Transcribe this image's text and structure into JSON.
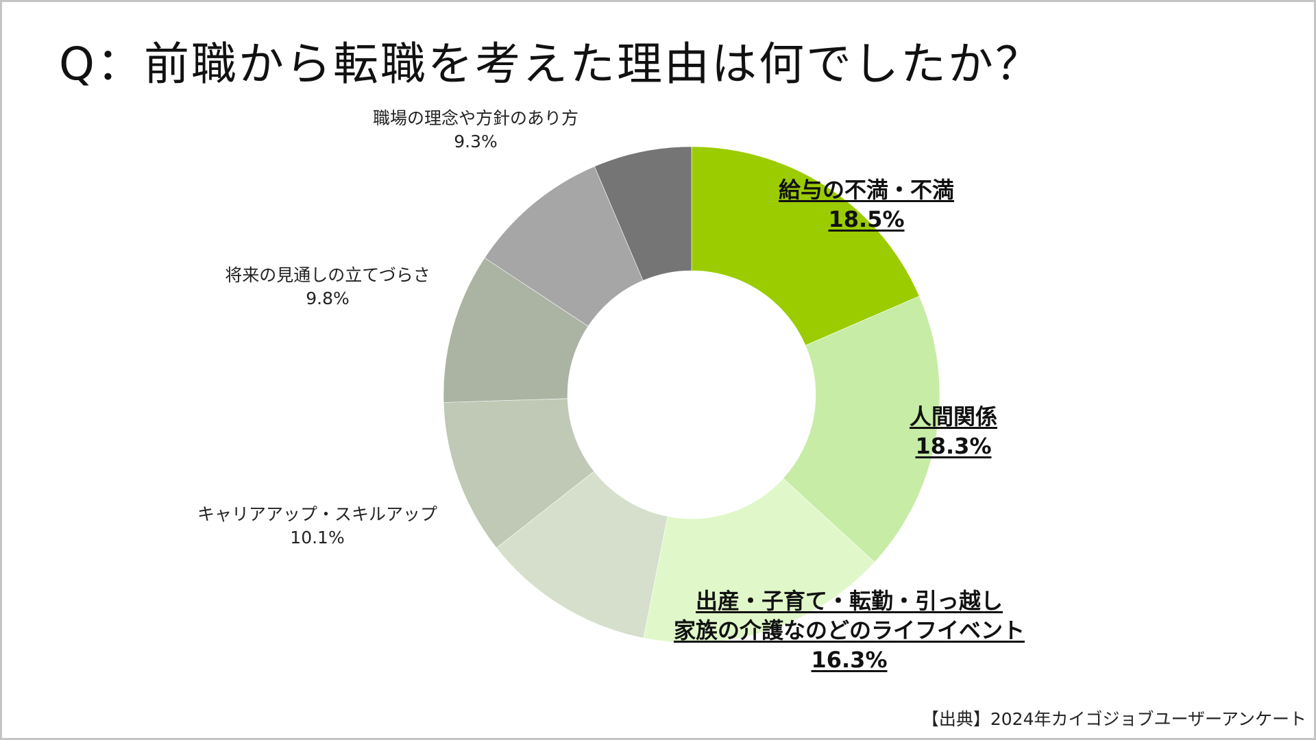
{
  "title": "Q：前職から転職を考えた理由は何でしたか？",
  "source": "【出典】2024年カイゴジョブユーザーアンケート",
  "chart_data": {
    "type": "pie",
    "donut": true,
    "title": "Q：前職から転職を考えた理由は何でしたか？",
    "start": "top, clockwise",
    "slices": [
      {
        "label": "給与の不満・不満",
        "value": 18.5,
        "value_label": "18.5%",
        "color": "#9bcc00",
        "emphasis": true
      },
      {
        "label": "人間関係",
        "value": 18.3,
        "value_label": "18.3%",
        "color": "#c7eca6",
        "emphasis": true
      },
      {
        "label": "出産・子育て・転勤・引っ越し\n家族の介護なのどのライフイベント",
        "label_lines": [
          "出産・子育て・転勤・引っ越し",
          "家族の介護なのどのライフイベント"
        ],
        "value": 16.3,
        "value_label": "16.3%",
        "color": "#e0f8c9",
        "emphasis": true
      },
      {
        "label": "",
        "value": 11.3,
        "color": "#d5dfcc"
      },
      {
        "label": "キャリアアップ・スキルアップ",
        "value": 10.1,
        "value_label": "10.1%",
        "color": "#bfc9b5"
      },
      {
        "label": "将来の見通しの立てづらさ",
        "value": 9.8,
        "value_label": "9.8%",
        "color": "#abb3a3"
      },
      {
        "label": "職場の理念や方針のあり方",
        "value": 9.3,
        "value_label": "9.3%",
        "color": "#a6a6a6"
      },
      {
        "label": "",
        "value": 6.4,
        "color": "#757575"
      }
    ]
  }
}
